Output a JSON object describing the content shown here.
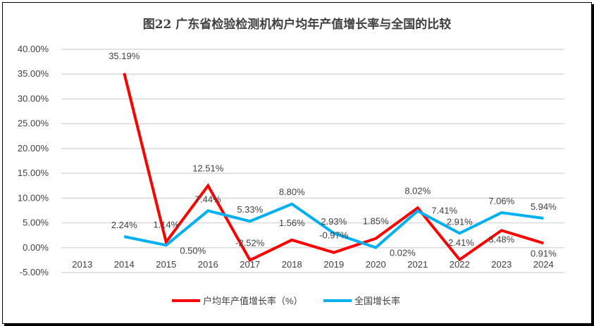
{
  "chart_data": {
    "type": "line",
    "title": "图22  广东省检验检测机构户均年产值增长率与全国的比较",
    "categories": [
      "2013",
      "2014",
      "2015",
      "2016",
      "2017",
      "2018",
      "2019",
      "2020",
      "2021",
      "2022",
      "2023",
      "2024"
    ],
    "ylim": [
      -5,
      40
    ],
    "yticks": [
      "-5.00%",
      "0.00%",
      "5.00%",
      "10.00%",
      "15.00%",
      "20.00%",
      "25.00%",
      "30.00%",
      "35.00%",
      "40.00%"
    ],
    "grid": true,
    "legend_position": "bottom",
    "series": [
      {
        "name": "户均年产值增长率（%）",
        "color": "#FF0000",
        "values": [
          null,
          35.19,
          1.14,
          12.51,
          -2.52,
          1.56,
          -0.97,
          1.85,
          8.02,
          -2.41,
          3.48,
          0.91
        ],
        "labels": [
          "",
          "35.19%",
          "1.14%",
          "12.51%",
          "-2.52%",
          "1.56%",
          "-0.97%",
          "1.85%",
          "8.02%",
          "-2.41%",
          "3.48%",
          "0.91%"
        ]
      },
      {
        "name": "全国增长率",
        "color": "#00B0F0",
        "values": [
          null,
          2.24,
          0.5,
          7.44,
          5.33,
          8.8,
          2.93,
          0.02,
          7.41,
          2.91,
          7.06,
          5.94
        ],
        "labels": [
          "",
          "2.24%",
          "0.50%",
          "7.44%",
          "5.33%",
          "8.80%",
          "2.93%",
          "0.02%",
          "7.41%",
          "2.91%",
          "7.06%",
          "5.94%"
        ]
      }
    ]
  }
}
